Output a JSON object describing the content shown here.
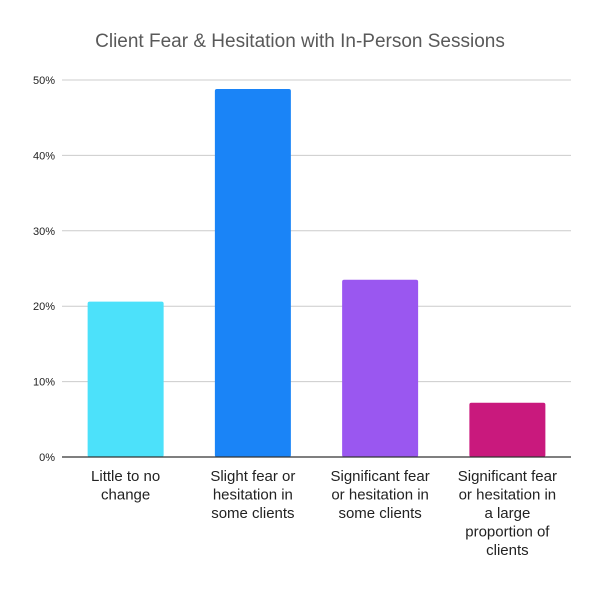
{
  "chart_data": {
    "type": "bar",
    "title": "Client Fear & Hesitation with In-Person Sessions",
    "xlabel": "",
    "ylabel": "",
    "ylim": [
      0,
      50
    ],
    "yticks": [
      "0%",
      "10%",
      "20%",
      "30%",
      "40%",
      "50%"
    ],
    "ytick_values": [
      0,
      10,
      20,
      30,
      40,
      50
    ],
    "grid": true,
    "legend": "none",
    "categories": [
      [
        "Little to no",
        "change"
      ],
      [
        "Slight fear or",
        "hesitation in",
        "some clients"
      ],
      [
        "Significant fear",
        "or hesitation in",
        "some clients"
      ],
      [
        "Significant fear",
        "or hesitation in",
        "a large",
        "proportion of",
        "clients"
      ]
    ],
    "values": [
      20.6,
      48.8,
      23.5,
      7.2
    ],
    "colors": [
      "#4ce1fa",
      "#1a84f7",
      "#9a57f0",
      "#c9197d"
    ]
  }
}
